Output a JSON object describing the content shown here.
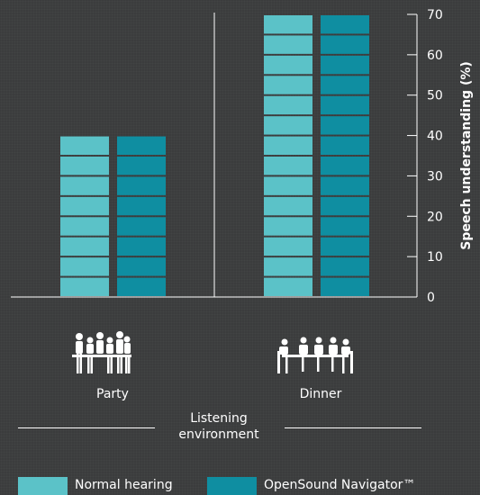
{
  "chart_data": {
    "type": "bar",
    "categories": [
      "Party",
      "Dinner"
    ],
    "series": [
      {
        "name": "Normal hearing",
        "values": [
          40,
          70
        ],
        "color": "#5bc2c8"
      },
      {
        "name": "OpenSound Navigator™",
        "values": [
          40,
          70
        ],
        "color": "#0f8ea1"
      }
    ],
    "ylabel": "Speech understanding (%)",
    "xlabel": "Listening environment",
    "ylim": [
      0,
      70
    ],
    "yticks": [
      0,
      10,
      20,
      30,
      40,
      50,
      60,
      70
    ],
    "legend_position": "bottom",
    "grid": false
  },
  "icons": [
    "party-people-icon",
    "dinner-table-icon"
  ]
}
